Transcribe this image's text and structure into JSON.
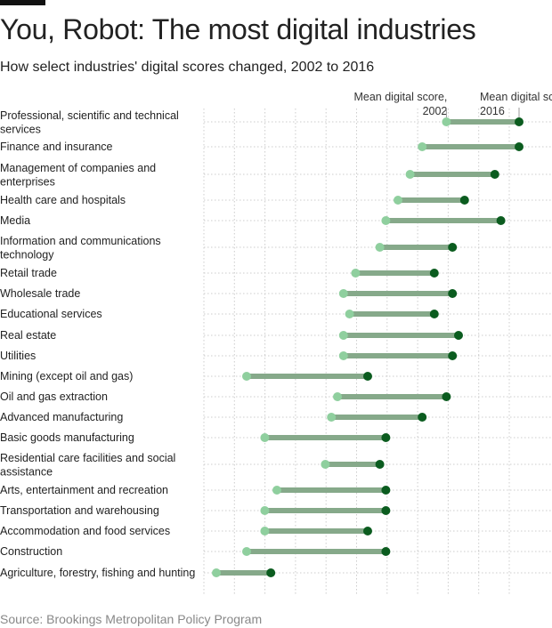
{
  "title": "You, Robot: The most digital industries",
  "subtitle": "How select industries' digital scores changed, 2002 to 2016",
  "source": "Source: Brookings Metropolitan Policy Program",
  "colors": {
    "start": "#8fcf9e",
    "end": "#0b5c1f",
    "bar": "#86a98a",
    "grid": "#cccccc"
  },
  "chart_data": {
    "type": "dumbbell",
    "title": "You, Robot: The most digital industries",
    "xlabel": "",
    "ylabel": "",
    "xlim": [
      0,
      55
    ],
    "grid": true,
    "legend": [
      {
        "name": "2002",
        "label_lines": [
          "Mean digital score,",
          "2002"
        ]
      },
      {
        "name": "2016",
        "label_lines": [
          "Mean digital score,",
          "2016"
        ]
      }
    ],
    "categories": [
      {
        "label_lines": [
          "Professional, scientific and technical",
          "services"
        ],
        "start": 38,
        "end": 50
      },
      {
        "label_lines": [
          "Finance and insurance"
        ],
        "start": 34,
        "end": 50
      },
      {
        "label_lines": [
          "Management of companies and",
          "enterprises"
        ],
        "start": 32,
        "end": 46
      },
      {
        "label_lines": [
          "Health care and hospitals"
        ],
        "start": 30,
        "end": 41
      },
      {
        "label_lines": [
          "Media"
        ],
        "start": 28,
        "end": 47
      },
      {
        "label_lines": [
          "Information and communications",
          "technology"
        ],
        "start": 27,
        "end": 39
      },
      {
        "label_lines": [
          "Retail trade"
        ],
        "start": 23,
        "end": 36
      },
      {
        "label_lines": [
          "Wholesale trade"
        ],
        "start": 21,
        "end": 39
      },
      {
        "label_lines": [
          "Educational services"
        ],
        "start": 22,
        "end": 36
      },
      {
        "label_lines": [
          "Real estate"
        ],
        "start": 21,
        "end": 40
      },
      {
        "label_lines": [
          "Utilities"
        ],
        "start": 21,
        "end": 39
      },
      {
        "label_lines": [
          "Mining (except oil and gas)"
        ],
        "start": 5,
        "end": 25
      },
      {
        "label_lines": [
          "Oil and gas extraction"
        ],
        "start": 20,
        "end": 38
      },
      {
        "label_lines": [
          "Advanced manufacturing"
        ],
        "start": 19,
        "end": 34
      },
      {
        "label_lines": [
          "Basic goods manufacturing"
        ],
        "start": 8,
        "end": 28
      },
      {
        "label_lines": [
          "Residential care facilities and social",
          "assistance"
        ],
        "start": 18,
        "end": 27
      },
      {
        "label_lines": [
          "Arts, entertainment and recreation"
        ],
        "start": 10,
        "end": 28
      },
      {
        "label_lines": [
          "Transportation and warehousing"
        ],
        "start": 8,
        "end": 28
      },
      {
        "label_lines": [
          "Accommodation and food services"
        ],
        "start": 8,
        "end": 25
      },
      {
        "label_lines": [
          "Construction"
        ],
        "start": 5,
        "end": 28
      },
      {
        "label_lines": [
          "Agriculture, forestry, fishing and hunting"
        ],
        "start": 0,
        "end": 9
      }
    ]
  }
}
